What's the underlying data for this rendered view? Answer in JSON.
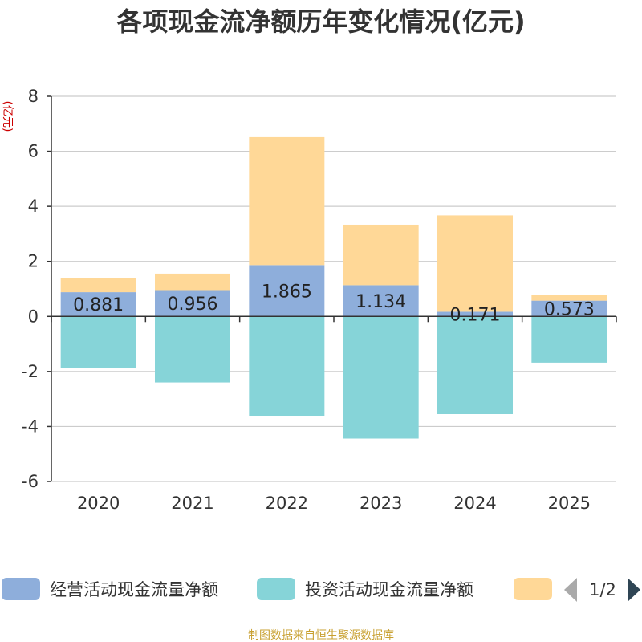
{
  "chart_data": {
    "type": "bar",
    "stacked": true,
    "title": "各项现金流净额历年变化情况(亿元)",
    "ylabel": "(亿元)",
    "xlabel": "",
    "categories": [
      "2020",
      "2021",
      "2022",
      "2023",
      "2024",
      "2025"
    ],
    "ylim": [
      -6,
      8
    ],
    "yticks": [
      8,
      6,
      4,
      2,
      0,
      -2,
      -4,
      -6
    ],
    "grid": true,
    "series": [
      {
        "name": "经营活动现金流量净额",
        "color": "#8eaedb",
        "values": [
          0.881,
          0.956,
          1.865,
          1.134,
          0.171,
          0.573
        ],
        "labels": [
          "0.881",
          "0.956",
          "1.865",
          "1.134",
          "0.171",
          "0.573"
        ]
      },
      {
        "name": "投资活动现金流量净额",
        "color": "#86d4d8",
        "values": [
          -1.88,
          -2.4,
          -3.62,
          -4.44,
          -3.55,
          -1.68
        ]
      },
      {
        "name": "",
        "color": "#ffd897",
        "values": [
          0.5,
          0.6,
          4.65,
          2.2,
          3.5,
          0.22
        ]
      }
    ],
    "legend": {
      "placement": "bottom",
      "page": "1/2"
    },
    "colors": {
      "axis": "#333333",
      "grid": "#cccccc",
      "ylabel": "#cc0000",
      "source": "#c8a030",
      "pager_inactive": "#aaaaaa",
      "pager_active": "#2f4554"
    }
  },
  "source_text": "制图数据来自恒生聚源数据库"
}
